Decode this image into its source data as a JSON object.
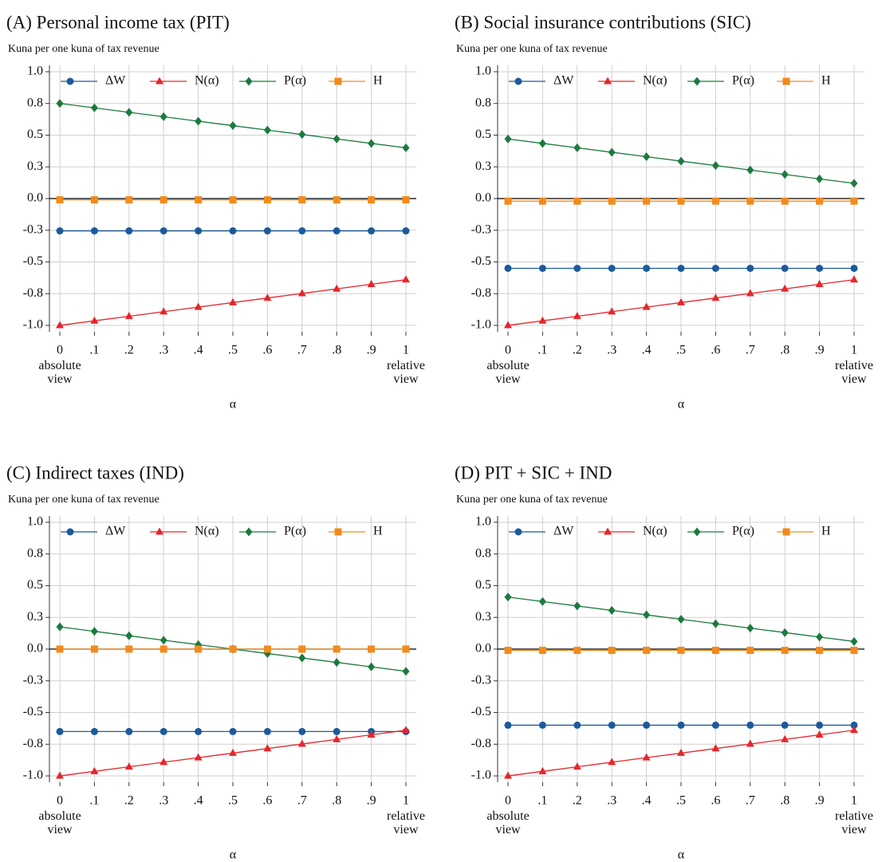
{
  "chart_data": [
    {
      "type": "line",
      "title": "(A) Personal income tax (PIT)",
      "ylabel": "Kuna per one kuna of tax revenue",
      "xlabel": "α",
      "x_notes": [
        "absolute view",
        "relative view"
      ],
      "x": [
        0,
        0.1,
        0.2,
        0.3,
        0.4,
        0.5,
        0.6,
        0.7,
        0.8,
        0.9,
        1
      ],
      "xlim": [
        -0.03,
        1.03
      ],
      "xticks": [
        0,
        {
          "value": 0.1,
          "label": ".1"
        },
        {
          "value": 0.2,
          "label": ".2"
        },
        {
          "value": 0.3,
          "label": ".3"
        },
        {
          "value": 0.4,
          "label": ".4"
        },
        {
          "value": 0.5,
          "label": ".5"
        },
        {
          "value": 0.6,
          "label": ".6"
        },
        {
          "value": 0.7,
          "label": ".7"
        },
        {
          "value": 0.8,
          "label": ".8"
        },
        {
          "value": 0.9,
          "label": ".9"
        },
        1
      ],
      "ylim": [
        -1.05,
        1.05
      ],
      "yticks": [
        {
          "value": 1,
          "label": "1.0"
        },
        {
          "value": 0.75,
          "label": "0.8"
        },
        {
          "value": 0.5,
          "label": "0.5"
        },
        {
          "value": 0.25,
          "label": "0.3"
        },
        {
          "value": 0,
          "label": "0.0"
        },
        {
          "value": -0.25,
          "label": "-0.3"
        },
        {
          "value": -0.5,
          "label": "-0.5"
        },
        {
          "value": -0.75,
          "label": "-0.8"
        },
        {
          "value": -1,
          "label": "-1.0"
        }
      ],
      "grid": true,
      "zero_line": true,
      "series": [
        {
          "name": "ΔW",
          "color": "#1c5a9c",
          "marker": "circle",
          "values": [
            -0.255,
            -0.255,
            -0.255,
            -0.255,
            -0.255,
            -0.255,
            -0.255,
            -0.255,
            -0.255,
            -0.255,
            -0.255
          ]
        },
        {
          "name": "N(α)",
          "color": "#e5262b",
          "marker": "triangle",
          "values": [
            -1,
            -0.964,
            -0.928,
            -0.892,
            -0.856,
            -0.82,
            -0.784,
            -0.748,
            -0.712,
            -0.676,
            -0.64
          ]
        },
        {
          "name": "P(α)",
          "color": "#1b7a3e",
          "marker": "diamond",
          "values": [
            0.75,
            0.715,
            0.68,
            0.645,
            0.61,
            0.575,
            0.54,
            0.505,
            0.47,
            0.435,
            0.4
          ]
        },
        {
          "name": "H",
          "color": "#f28a1c",
          "marker": "square",
          "values": [
            -0.01,
            -0.01,
            -0.01,
            -0.01,
            -0.01,
            -0.01,
            -0.01,
            -0.01,
            -0.01,
            -0.01,
            -0.01
          ]
        }
      ]
    },
    {
      "type": "line",
      "title": "(B) Social insurance contributions (SIC)",
      "ylabel": "Kuna per one kuna of tax revenue",
      "xlabel": "α",
      "x_notes": [
        "absolute view",
        "relative view"
      ],
      "x": [
        0,
        0.1,
        0.2,
        0.3,
        0.4,
        0.5,
        0.6,
        0.7,
        0.8,
        0.9,
        1
      ],
      "xlim": [
        -0.03,
        1.03
      ],
      "xticks": [
        0,
        {
          "value": 0.1,
          "label": ".1"
        },
        {
          "value": 0.2,
          "label": ".2"
        },
        {
          "value": 0.3,
          "label": ".3"
        },
        {
          "value": 0.4,
          "label": ".4"
        },
        {
          "value": 0.5,
          "label": ".5"
        },
        {
          "value": 0.6,
          "label": ".6"
        },
        {
          "value": 0.7,
          "label": ".7"
        },
        {
          "value": 0.8,
          "label": ".8"
        },
        {
          "value": 0.9,
          "label": ".9"
        },
        1
      ],
      "ylim": [
        -1.05,
        1.05
      ],
      "yticks": [
        {
          "value": 1,
          "label": "1.0"
        },
        {
          "value": 0.75,
          "label": "0.8"
        },
        {
          "value": 0.5,
          "label": "0.5"
        },
        {
          "value": 0.25,
          "label": "0.3"
        },
        {
          "value": 0,
          "label": "0.0"
        },
        {
          "value": -0.25,
          "label": "-0.3"
        },
        {
          "value": -0.5,
          "label": "-0.5"
        },
        {
          "value": -0.75,
          "label": "-0.8"
        },
        {
          "value": -1,
          "label": "-1.0"
        }
      ],
      "grid": true,
      "zero_line": true,
      "series": [
        {
          "name": "ΔW",
          "color": "#1c5a9c",
          "marker": "circle",
          "values": [
            -0.55,
            -0.55,
            -0.55,
            -0.55,
            -0.55,
            -0.55,
            -0.55,
            -0.55,
            -0.55,
            -0.55,
            -0.55
          ]
        },
        {
          "name": "N(α)",
          "color": "#e5262b",
          "marker": "triangle",
          "values": [
            -1,
            -0.964,
            -0.928,
            -0.892,
            -0.856,
            -0.82,
            -0.784,
            -0.748,
            -0.712,
            -0.676,
            -0.64
          ]
        },
        {
          "name": "P(α)",
          "color": "#1b7a3e",
          "marker": "diamond",
          "values": [
            0.47,
            0.435,
            0.4,
            0.365,
            0.33,
            0.295,
            0.26,
            0.225,
            0.19,
            0.155,
            0.12
          ]
        },
        {
          "name": "H",
          "color": "#f28a1c",
          "marker": "square",
          "values": [
            -0.02,
            -0.02,
            -0.02,
            -0.02,
            -0.02,
            -0.02,
            -0.02,
            -0.02,
            -0.02,
            -0.02,
            -0.02
          ]
        }
      ]
    },
    {
      "type": "line",
      "title": "(C) Indirect taxes (IND)",
      "ylabel": "Kuna per one kuna of tax revenue",
      "xlabel": "α",
      "x_notes": [
        "absolute view",
        "relative view"
      ],
      "x": [
        0,
        0.1,
        0.2,
        0.3,
        0.4,
        0.5,
        0.6,
        0.7,
        0.8,
        0.9,
        1
      ],
      "xlim": [
        -0.03,
        1.03
      ],
      "xticks": [
        0,
        {
          "value": 0.1,
          "label": ".1"
        },
        {
          "value": 0.2,
          "label": ".2"
        },
        {
          "value": 0.3,
          "label": ".3"
        },
        {
          "value": 0.4,
          "label": ".4"
        },
        {
          "value": 0.5,
          "label": ".5"
        },
        {
          "value": 0.6,
          "label": ".6"
        },
        {
          "value": 0.7,
          "label": ".7"
        },
        {
          "value": 0.8,
          "label": ".8"
        },
        {
          "value": 0.9,
          "label": ".9"
        },
        1
      ],
      "ylim": [
        -1.05,
        1.05
      ],
      "yticks": [
        {
          "value": 1,
          "label": "1.0"
        },
        {
          "value": 0.75,
          "label": "0.8"
        },
        {
          "value": 0.5,
          "label": "0.5"
        },
        {
          "value": 0.25,
          "label": "0.3"
        },
        {
          "value": 0,
          "label": "0.0"
        },
        {
          "value": -0.25,
          "label": "-0.3"
        },
        {
          "value": -0.5,
          "label": "-0.5"
        },
        {
          "value": -0.75,
          "label": "-0.8"
        },
        {
          "value": -1,
          "label": "-1.0"
        }
      ],
      "grid": true,
      "zero_line": true,
      "series": [
        {
          "name": "ΔW",
          "color": "#1c5a9c",
          "marker": "circle",
          "values": [
            -0.65,
            -0.65,
            -0.65,
            -0.65,
            -0.65,
            -0.65,
            -0.65,
            -0.65,
            -0.65,
            -0.65,
            -0.65
          ]
        },
        {
          "name": "N(α)",
          "color": "#e5262b",
          "marker": "triangle",
          "values": [
            -1,
            -0.964,
            -0.928,
            -0.892,
            -0.856,
            -0.82,
            -0.784,
            -0.748,
            -0.712,
            -0.676,
            -0.64
          ]
        },
        {
          "name": "P(α)",
          "color": "#1b7a3e",
          "marker": "diamond",
          "values": [
            0.175,
            0.14,
            0.105,
            0.07,
            0.035,
            0,
            -0.035,
            -0.07,
            -0.105,
            -0.14,
            -0.175
          ]
        },
        {
          "name": "H",
          "color": "#f28a1c",
          "marker": "square",
          "values": [
            0,
            0,
            0,
            0,
            0,
            0,
            0,
            0,
            0,
            0,
            0
          ]
        }
      ]
    },
    {
      "type": "line",
      "title": "(D) PIT + SIC + IND",
      "ylabel": "Kuna per one kuna of tax revenue",
      "xlabel": "α",
      "x_notes": [
        "absolute view",
        "relative view"
      ],
      "x": [
        0,
        0.1,
        0.2,
        0.3,
        0.4,
        0.5,
        0.6,
        0.7,
        0.8,
        0.9,
        1
      ],
      "xlim": [
        -0.03,
        1.03
      ],
      "xticks": [
        0,
        {
          "value": 0.1,
          "label": ".1"
        },
        {
          "value": 0.2,
          "label": ".2"
        },
        {
          "value": 0.3,
          "label": ".3"
        },
        {
          "value": 0.4,
          "label": ".4"
        },
        {
          "value": 0.5,
          "label": ".5"
        },
        {
          "value": 0.6,
          "label": ".6"
        },
        {
          "value": 0.7,
          "label": ".7"
        },
        {
          "value": 0.8,
          "label": ".8"
        },
        {
          "value": 0.9,
          "label": ".9"
        },
        1
      ],
      "ylim": [
        -1.05,
        1.05
      ],
      "yticks": [
        {
          "value": 1,
          "label": "1.0"
        },
        {
          "value": 0.75,
          "label": "0.8"
        },
        {
          "value": 0.5,
          "label": "0.5"
        },
        {
          "value": 0.25,
          "label": "0.3"
        },
        {
          "value": 0,
          "label": "0.0"
        },
        {
          "value": -0.25,
          "label": "-0.3"
        },
        {
          "value": -0.5,
          "label": "-0.5"
        },
        {
          "value": -0.75,
          "label": "-0.8"
        },
        {
          "value": -1,
          "label": "-1.0"
        }
      ],
      "grid": true,
      "zero_line": true,
      "series": [
        {
          "name": "ΔW",
          "color": "#1c5a9c",
          "marker": "circle",
          "values": [
            -0.6,
            -0.6,
            -0.6,
            -0.6,
            -0.6,
            -0.6,
            -0.6,
            -0.6,
            -0.6,
            -0.6,
            -0.6
          ]
        },
        {
          "name": "N(α)",
          "color": "#e5262b",
          "marker": "triangle",
          "values": [
            -1,
            -0.964,
            -0.928,
            -0.892,
            -0.856,
            -0.82,
            -0.784,
            -0.748,
            -0.712,
            -0.676,
            -0.64
          ]
        },
        {
          "name": "P(α)",
          "color": "#1b7a3e",
          "marker": "diamond",
          "values": [
            0.41,
            0.375,
            0.34,
            0.305,
            0.27,
            0.235,
            0.2,
            0.165,
            0.13,
            0.095,
            0.06
          ]
        },
        {
          "name": "H",
          "color": "#f28a1c",
          "marker": "square",
          "values": [
            -0.01,
            -0.01,
            -0.01,
            -0.01,
            -0.01,
            -0.01,
            -0.01,
            -0.01,
            -0.01,
            -0.01,
            -0.01
          ]
        }
      ]
    }
  ]
}
